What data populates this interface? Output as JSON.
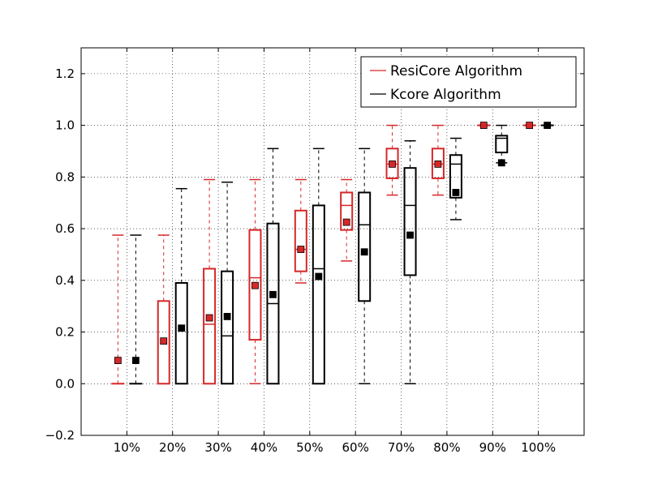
{
  "chart_data": {
    "type": "box",
    "categories": [
      "10%",
      "20%",
      "30%",
      "40%",
      "50%",
      "60%",
      "70%",
      "80%",
      "90%",
      "100%"
    ],
    "ylim": [
      -0.2,
      1.3
    ],
    "yticks": [
      -0.2,
      0.0,
      0.2,
      0.4,
      0.6,
      0.8,
      1.0,
      1.2
    ],
    "ytick_labels": [
      "−0.2",
      "0.0",
      "0.2",
      "0.4",
      "0.6",
      "0.8",
      "1.0",
      "1.2"
    ],
    "grid": true,
    "legend_position": "top-right",
    "series": [
      {
        "name": "ResiCore Algorithm",
        "color": "#d62728",
        "boxes": [
          {
            "whislo": 0.0,
            "q1": 0.0,
            "med": 0.0,
            "q3": 0.0,
            "whishi": 0.575,
            "mean": 0.09
          },
          {
            "whislo": 0.0,
            "q1": 0.0,
            "med": 0.0,
            "q3": 0.32,
            "whishi": 0.575,
            "mean": 0.165
          },
          {
            "whislo": 0.0,
            "q1": 0.0,
            "med": 0.23,
            "q3": 0.445,
            "whishi": 0.79,
            "mean": 0.255
          },
          {
            "whislo": 0.0,
            "q1": 0.17,
            "med": 0.41,
            "q3": 0.595,
            "whishi": 0.79,
            "mean": 0.38
          },
          {
            "whislo": 0.39,
            "q1": 0.435,
            "med": 0.52,
            "q3": 0.67,
            "whishi": 0.79,
            "mean": 0.52
          },
          {
            "whislo": 0.475,
            "q1": 0.595,
            "med": 0.69,
            "q3": 0.74,
            "whishi": 0.79,
            "mean": 0.625
          },
          {
            "whislo": 0.73,
            "q1": 0.795,
            "med": 0.85,
            "q3": 0.91,
            "whishi": 1.0,
            "mean": 0.85
          },
          {
            "whislo": 0.73,
            "q1": 0.795,
            "med": 0.85,
            "q3": 0.91,
            "whishi": 1.0,
            "mean": 0.85
          },
          {
            "whislo": 1.0,
            "q1": 1.0,
            "med": 1.0,
            "q3": 1.0,
            "whishi": 1.0,
            "mean": 1.0
          },
          {
            "whislo": 1.0,
            "q1": 1.0,
            "med": 1.0,
            "q3": 1.0,
            "whishi": 1.0,
            "mean": 1.0
          }
        ]
      },
      {
        "name": "Kcore Algorithm",
        "color": "#000000",
        "boxes": [
          {
            "whislo": 0.0,
            "q1": 0.0,
            "med": 0.0,
            "q3": 0.0,
            "whishi": 0.575,
            "mean": 0.09
          },
          {
            "whislo": 0.0,
            "q1": 0.0,
            "med": 0.0,
            "q3": 0.39,
            "whishi": 0.755,
            "mean": 0.215
          },
          {
            "whislo": 0.0,
            "q1": 0.0,
            "med": 0.185,
            "q3": 0.435,
            "whishi": 0.78,
            "mean": 0.26
          },
          {
            "whislo": 0.0,
            "q1": 0.0,
            "med": 0.31,
            "q3": 0.62,
            "whishi": 0.91,
            "mean": 0.345
          },
          {
            "whislo": 0.0,
            "q1": 0.0,
            "med": 0.445,
            "q3": 0.69,
            "whishi": 0.91,
            "mean": 0.415
          },
          {
            "whislo": 0.0,
            "q1": 0.32,
            "med": 0.615,
            "q3": 0.74,
            "whishi": 0.91,
            "mean": 0.51
          },
          {
            "whislo": 0.0,
            "q1": 0.42,
            "med": 0.69,
            "q3": 0.835,
            "whishi": 0.94,
            "mean": 0.575
          },
          {
            "whislo": 0.635,
            "q1": 0.72,
            "med": 0.85,
            "q3": 0.885,
            "whishi": 0.95,
            "mean": 0.74
          },
          {
            "whislo": 0.855,
            "q1": 0.895,
            "med": 0.95,
            "q3": 0.96,
            "whishi": 1.0,
            "mean": 0.855
          },
          {
            "whislo": 1.0,
            "q1": 1.0,
            "med": 1.0,
            "q3": 1.0,
            "whishi": 1.0,
            "mean": 1.0
          }
        ]
      }
    ]
  }
}
